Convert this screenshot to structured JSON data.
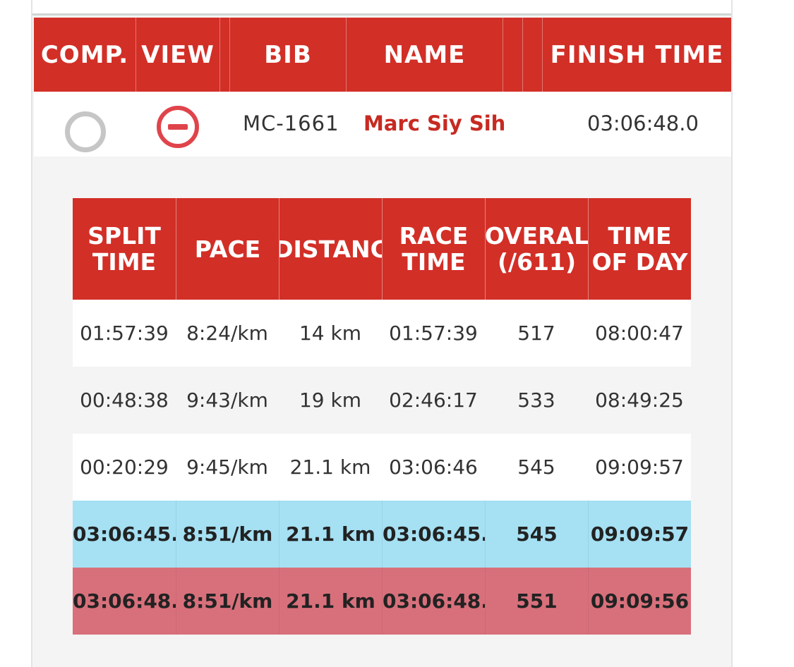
{
  "results_header": {
    "comp": "COMP.",
    "view": "VIEW",
    "bib": "BIB",
    "name": "NAME",
    "finish_time": "FINISH TIME"
  },
  "result": {
    "bib": "MC-1661",
    "name": "Marc Siy Sih",
    "finish_time": "03:06:48.0"
  },
  "splits_header": {
    "split_time_1": "SPLIT",
    "split_time_2": "TIME",
    "pace": "PACE",
    "distance": "DISTANC",
    "race_time_1": "RACE",
    "race_time_2": "TIME",
    "overall_1": "OVERAL",
    "overall_2": "(/611)",
    "time_of_day_1": "TIME",
    "time_of_day_2": "OF DAY"
  },
  "splits": [
    {
      "split_time": "01:57:39",
      "pace": "8:24/km",
      "distance": "14 km",
      "race_time": "01:57:39",
      "overall": "517",
      "time_of_day": "08:00:47"
    },
    {
      "split_time": "00:48:38",
      "pace": "9:43/km",
      "distance": "19 km",
      "race_time": "02:46:17",
      "overall": "533",
      "time_of_day": "08:49:25"
    },
    {
      "split_time": "00:20:29",
      "pace": "9:45/km",
      "distance": "21.1 km",
      "race_time": "03:06:46",
      "overall": "545",
      "time_of_day": "09:09:57"
    },
    {
      "split_time": "03:06:45.",
      "pace": "8:51/km",
      "distance": "21.1 km",
      "race_time": "03:06:45.",
      "overall": "545",
      "time_of_day": "09:09:57"
    },
    {
      "split_time": "03:06:48.",
      "pace": "8:51/km",
      "distance": "21.1 km",
      "race_time": "03:06:48.",
      "overall": "551",
      "time_of_day": "09:09:56"
    }
  ],
  "colors": {
    "header_red": "#d22f27",
    "name_red": "#c72a22",
    "highlight_blue": "#a5e0f3",
    "highlight_red": "#d8707b"
  },
  "icons": {
    "comp": "radio-circle-icon",
    "view": "minus-circle-icon"
  }
}
